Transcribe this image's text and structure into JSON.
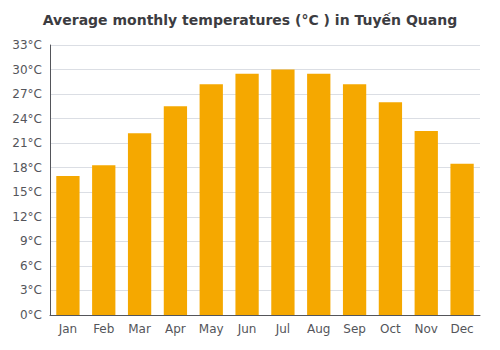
{
  "chart_data": {
    "type": "bar",
    "title": "Average monthly temperatures (°C ) in Tuyến Quang",
    "categories": [
      "Jan",
      "Feb",
      "Mar",
      "Apr",
      "May",
      "Jun",
      "Jul",
      "Aug",
      "Sep",
      "Oct",
      "Nov",
      "Dec"
    ],
    "values": [
      17.0,
      18.3,
      22.2,
      25.5,
      28.2,
      29.5,
      30.0,
      29.5,
      28.2,
      26.0,
      22.5,
      18.5
    ],
    "color": "#F5A800",
    "ylim": [
      0,
      33
    ],
    "yticks": [
      {
        "value": 0,
        "label": "0°C"
      },
      {
        "value": 3,
        "label": "3°C"
      },
      {
        "value": 6,
        "label": "6°C"
      },
      {
        "value": 9,
        "label": "9°C"
      },
      {
        "value": 12,
        "label": "12°C"
      },
      {
        "value": 15,
        "label": "15°C"
      },
      {
        "value": 18,
        "label": "18°C"
      },
      {
        "value": 21,
        "label": "21°C"
      },
      {
        "value": 24,
        "label": "24°C"
      },
      {
        "value": 27,
        "label": "27°C"
      },
      {
        "value": 30,
        "label": "30°C"
      },
      {
        "value": 33,
        "label": "33°C"
      }
    ],
    "grid": true
  }
}
